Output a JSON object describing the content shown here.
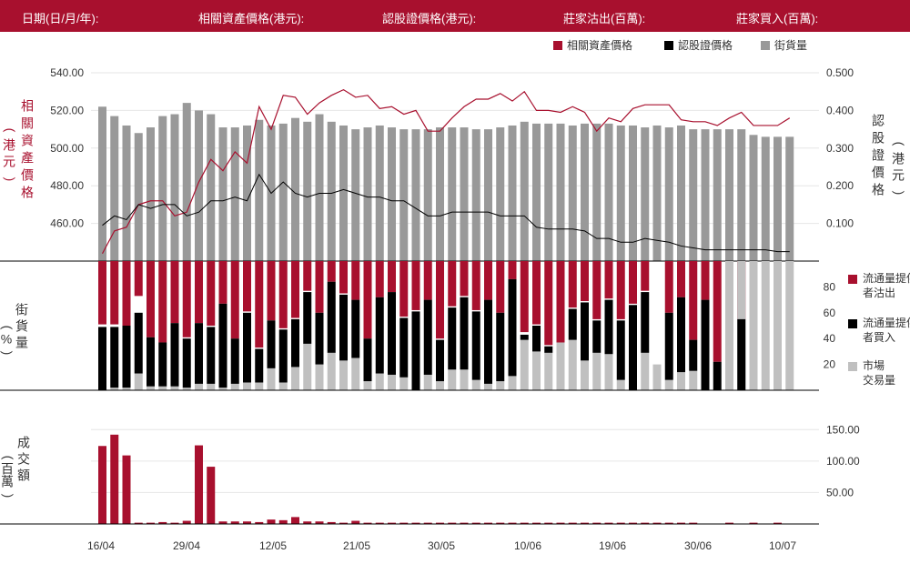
{
  "header": {
    "date_label": "日期(日/月/年):",
    "underlying_label": "相關資產價格(港元):",
    "warrant_label": "認股證價格(港元):",
    "mm_sell_label": "莊家沽出(百萬):",
    "mm_buy_label": "莊家買入(百萬):"
  },
  "colors": {
    "red": "#a8102e",
    "black": "#000000",
    "gray": "#999999",
    "lightgray": "#c0c0c0"
  },
  "chart_data": {
    "type": "combo",
    "x_ticks": [
      "16/04",
      "29/04",
      "12/05",
      "21/05",
      "30/05",
      "10/06",
      "19/06",
      "30/06",
      "10/07"
    ],
    "legend": [
      "相關資產價格",
      "認股證價格",
      "街貨量"
    ],
    "top": {
      "left_axis_title": "相關資產價格(港元)",
      "right_axis_title": "認股證價格(港元)",
      "left_ticks": [
        "540.00",
        "520.00",
        "500.00",
        "480.00",
        "460.00"
      ],
      "right_ticks": [
        "0.500",
        "0.400",
        "0.300",
        "0.200",
        "0.100"
      ],
      "left_range": [
        440,
        540
      ],
      "right_range": [
        0,
        0.5
      ],
      "underlying_price": [
        444,
        456,
        458,
        470,
        472,
        472,
        464,
        466,
        482,
        494,
        488,
        498,
        492,
        522,
        510,
        528,
        527,
        518,
        524,
        528,
        531,
        527,
        528,
        521,
        522,
        518,
        520,
        509,
        509,
        516,
        522,
        526,
        526,
        529,
        525,
        530,
        520,
        520,
        519,
        522,
        519,
        509,
        516,
        514,
        521,
        523,
        523,
        523,
        515,
        514,
        514,
        512,
        516,
        519,
        512,
        512,
        512,
        516
      ],
      "warrant_price": [
        0.095,
        0.12,
        0.11,
        0.15,
        0.14,
        0.15,
        0.15,
        0.12,
        0.13,
        0.16,
        0.16,
        0.17,
        0.16,
        0.23,
        0.18,
        0.21,
        0.18,
        0.17,
        0.18,
        0.18,
        0.19,
        0.18,
        0.17,
        0.17,
        0.16,
        0.16,
        0.14,
        0.12,
        0.12,
        0.13,
        0.13,
        0.13,
        0.13,
        0.12,
        0.12,
        0.12,
        0.09,
        0.085,
        0.085,
        0.085,
        0.08,
        0.06,
        0.06,
        0.05,
        0.05,
        0.06,
        0.055,
        0.05,
        0.04,
        0.035,
        0.03,
        0.03,
        0.03,
        0.03,
        0.03,
        0.03,
        0.025,
        0.025
      ],
      "outstanding_pct": [
        82,
        77,
        72,
        68,
        71,
        77,
        78,
        84,
        80,
        78,
        71,
        71,
        72,
        75,
        72,
        73,
        76,
        74,
        78,
        74,
        72,
        70,
        71,
        72,
        71,
        70,
        70,
        70,
        71,
        71,
        71,
        70,
        70,
        71,
        72,
        74,
        73,
        73,
        73,
        72,
        73,
        73,
        73,
        72,
        72,
        71,
        72,
        71,
        72,
        70,
        70,
        70,
        70,
        70,
        67,
        66,
        66,
        66
      ]
    },
    "mid": {
      "left_axis_title": "街貨量(%)",
      "right_ticks": [
        "80",
        "60",
        "40",
        "20"
      ],
      "range": [
        0,
        100
      ],
      "legend": [
        "流通量提供者沽出",
        "流通量提供者買入",
        "市場交易量"
      ],
      "mm_sell_pct": [
        51,
        51,
        50,
        73,
        41,
        37,
        52,
        41,
        52,
        50,
        67,
        40,
        61,
        33,
        54,
        48,
        56,
        77,
        60,
        84,
        75,
        70,
        40,
        72,
        76,
        57,
        62,
        70,
        40,
        65,
        73,
        62,
        70,
        60,
        86,
        45,
        51,
        35,
        35,
        64,
        69,
        55,
        71,
        55,
        67,
        77,
        0,
        60,
        72,
        39,
        70,
        22,
        0,
        55,
        0,
        0,
        0,
        0
      ],
      "mm_buy_pct": [
        49,
        49,
        50,
        60,
        41,
        37,
        52,
        40,
        52,
        49,
        67,
        40,
        60,
        32,
        54,
        47,
        55,
        76,
        60,
        84,
        74,
        70,
        40,
        72,
        76,
        56,
        61,
        70,
        39,
        64,
        72,
        61,
        70,
        60,
        86,
        43,
        50,
        34,
        34,
        63,
        68,
        54,
        70,
        54,
        66,
        76,
        0,
        60,
        72,
        39,
        70,
        22,
        0,
        55,
        0,
        0,
        0,
        0
      ],
      "market_volume_pct": [
        0,
        2,
        2,
        13,
        3,
        3,
        3,
        2,
        5,
        5,
        2,
        5,
        6,
        6,
        17,
        6,
        18,
        36,
        20,
        29,
        23,
        25,
        7,
        13,
        12,
        10,
        0,
        12,
        7,
        16,
        16,
        8,
        5,
        7,
        11,
        39,
        30,
        29,
        37,
        39,
        23,
        29,
        28,
        8,
        0,
        29,
        20,
        8,
        14,
        15,
        0,
        0,
        100,
        100,
        100,
        100,
        100,
        100
      ]
    },
    "bottom": {
      "left_axis_title": "成交額(百萬)",
      "right_ticks": [
        "150.00",
        "100.00",
        "50.00"
      ],
      "range": [
        0,
        175
      ],
      "turnover_millions": [
        124,
        142,
        109,
        2,
        2,
        3,
        2,
        5,
        125,
        91,
        4,
        4,
        4,
        3,
        7,
        6,
        11,
        4,
        4,
        3,
        2,
        5,
        2,
        2,
        2,
        2,
        2,
        2,
        2,
        2,
        2,
        2,
        2,
        2,
        2,
        2,
        2,
        2,
        2,
        2,
        2,
        2,
        2,
        2,
        2,
        2,
        2,
        2,
        2,
        2,
        0,
        0,
        2,
        0,
        2,
        0,
        2,
        0
      ]
    }
  }
}
